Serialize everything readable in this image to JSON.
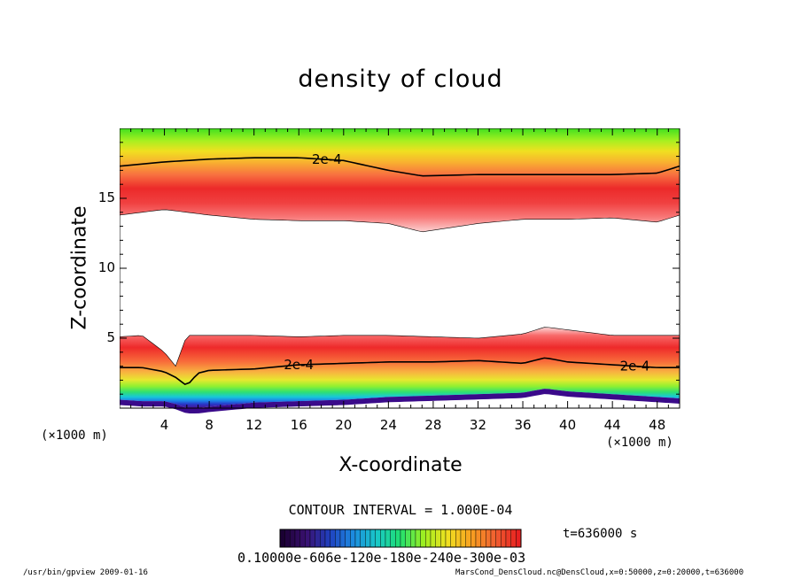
{
  "chart_data": {
    "type": "heatmap",
    "title": "density of cloud",
    "xlabel": "X-coordinate",
    "ylabel": "Z-coordinate",
    "x_unit": "(×1000 m)",
    "xlim": [
      0,
      50
    ],
    "ylim": [
      0,
      20
    ],
    "x_ticks": [
      4,
      8,
      12,
      16,
      20,
      24,
      28,
      32,
      36,
      40,
      44,
      48
    ],
    "y_ticks": [
      5,
      10,
      15
    ],
    "contour_labels": [
      "2e-4",
      "2e-4",
      "2e-4"
    ],
    "contour_interval": "CONTOUR INTERVAL = 1.000E-04",
    "time_label": "t=636000 s",
    "colorbar_tick_text": "0.10000e-606e-120e-180e-240e-300e-03",
    "upper_layer": {
      "x": [
        0,
        4,
        8,
        12,
        16,
        20,
        24,
        27,
        32,
        36,
        40,
        44,
        48,
        50
      ],
      "contour_2e4_z": [
        17.3,
        17.6,
        17.8,
        17.9,
        17.9,
        17.7,
        17.0,
        16.6,
        16.7,
        16.7,
        16.7,
        16.7,
        16.8,
        17.3
      ],
      "core_z": [
        15.5,
        15.8,
        15.6,
        15.4,
        15.4,
        15.0,
        14.3,
        13.8,
        14.1,
        14.2,
        14.3,
        14.4,
        14.6,
        14.8
      ],
      "bottom_z": [
        13.8,
        14.2,
        13.8,
        13.5,
        13.4,
        13.4,
        13.2,
        12.6,
        13.2,
        13.5,
        13.5,
        13.6,
        13.3,
        13.8
      ]
    },
    "lower_layer": {
      "x": [
        0,
        2,
        4,
        5,
        6,
        7,
        8,
        12,
        16,
        20,
        24,
        28,
        32,
        36,
        38,
        40,
        44,
        48,
        50
      ],
      "top_z": [
        5.1,
        5.2,
        4.0,
        3.0,
        5.2,
        5.2,
        5.2,
        5.2,
        5.1,
        5.2,
        5.2,
        5.1,
        5.0,
        5.3,
        5.8,
        5.6,
        5.2,
        5.2,
        5.2
      ],
      "contour_2e4_z": [
        2.9,
        2.9,
        2.6,
        2.2,
        1.6,
        2.5,
        2.7,
        2.8,
        3.1,
        3.2,
        3.3,
        3.3,
        3.4,
        3.2,
        3.6,
        3.3,
        3.1,
        2.9,
        2.9
      ],
      "bottom_z": [
        0.6,
        0.5,
        0.5,
        0.3,
        0.0,
        0.0,
        0.1,
        0.4,
        0.5,
        0.6,
        0.8,
        0.9,
        1.0,
        1.1,
        1.4,
        1.2,
        1.0,
        0.8,
        0.7
      ]
    },
    "colorbar_colors": [
      "#1a0033",
      "#3a1070",
      "#2040c0",
      "#1c8ce0",
      "#18c8c8",
      "#20e070",
      "#a0f020",
      "#f0e020",
      "#f8a020",
      "#f06030",
      "#e82020"
    ],
    "grid": false
  },
  "footer": {
    "left": "/usr/bin/gpview  2009-01-16",
    "right": "MarsCond_DensCloud.nc@DensCloud,x=0:50000,z=0:20000,t=636000"
  }
}
